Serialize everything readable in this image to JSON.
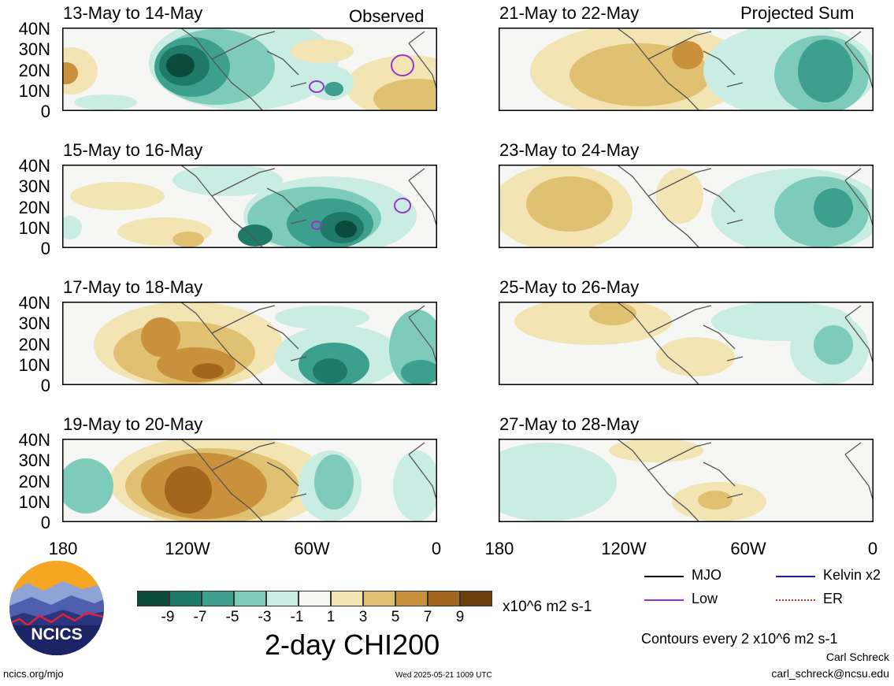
{
  "panels": [
    {
      "title": "13-May to 14-May"
    },
    {
      "title": "15-May to 16-May"
    },
    {
      "title": "17-May to 18-May"
    },
    {
      "title": "19-May to 20-May"
    },
    {
      "title": "21-May to 22-May"
    },
    {
      "title": "23-May to 24-May"
    },
    {
      "title": "25-May to 26-May"
    },
    {
      "title": "27-May to 28-May"
    }
  ],
  "labels": {
    "observed": "Observed",
    "projected": "Projected Sum"
  },
  "axes": {
    "lat_ticks": [
      "40N",
      "30N",
      "20N",
      "10N",
      "0"
    ],
    "lon_ticks": [
      "180",
      "120W",
      "60W",
      "0"
    ]
  },
  "colorbar": {
    "colors": [
      "#0b4a3c",
      "#1f7a6a",
      "#3d9f8e",
      "#7fcbbb",
      "#c9ece3",
      "#f6f6f4",
      "#f3e4b4",
      "#e0c071",
      "#c9913c",
      "#a4661d",
      "#6b3f0e"
    ],
    "tick_labels": [
      "-9",
      "-7",
      "-5",
      "-3",
      "-1",
      "1",
      "3",
      "5",
      "7",
      "9"
    ],
    "units": "x10^6 m2 s-1",
    "title": "2-day CHI200"
  },
  "legend": {
    "items": [
      {
        "label": "MJO",
        "color": "#000000"
      },
      {
        "label": "Kelvin x2",
        "color": "#1a1acc"
      },
      {
        "label": "Low",
        "color": "#9933cc"
      },
      {
        "label": "ER",
        "color": "#dd2222"
      }
    ],
    "contours_note": "Contours every 2 x10^6 m2 s-1"
  },
  "logo": {
    "text": "NCICS"
  },
  "footer": {
    "url": "ncics.org/mjo",
    "timestamp": "Wed 2025-05-21 1009 UTC",
    "author": "Carl Schreck",
    "email": "carl_schreck@ncsu.edu"
  }
}
